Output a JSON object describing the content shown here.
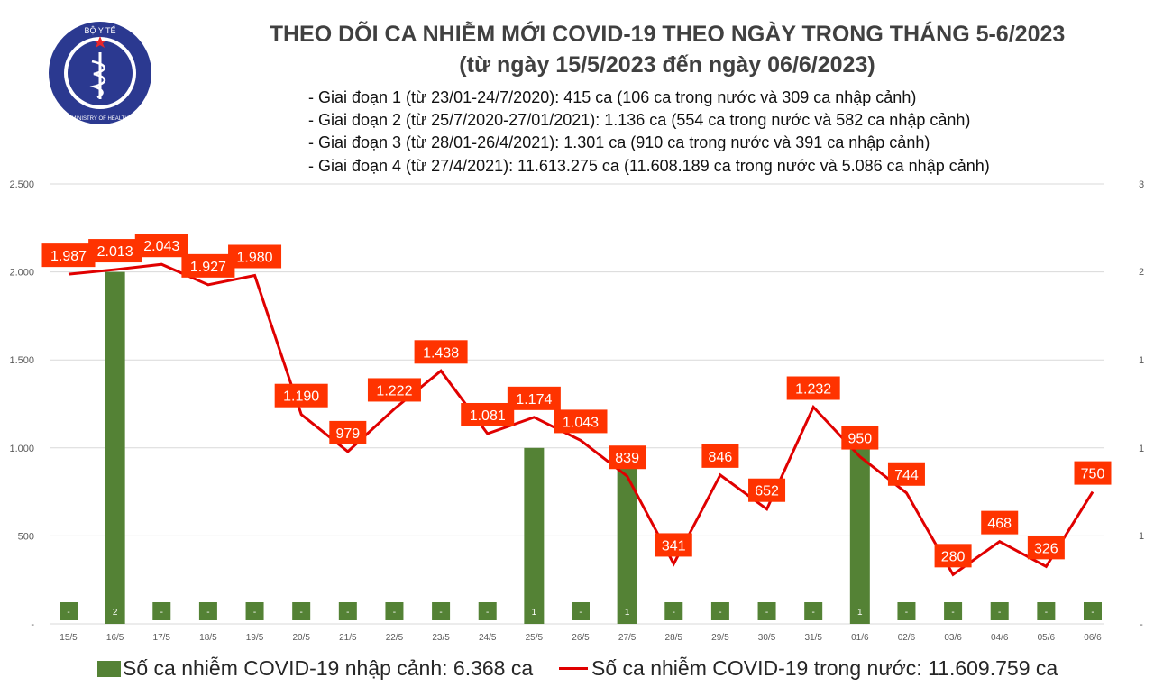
{
  "logo": {
    "text_top": "BỘ Y TẾ",
    "text_bottom": "MINISTRY OF HEALTH"
  },
  "header": {
    "title": "THEO DÕI CA NHIỄM MỚI COVID-19 THEO NGÀY TRONG THÁNG 5-6/2023",
    "subtitle": "(từ ngày 15/5/2023 đến ngày 06/6/2023)",
    "stages": [
      "- Giai đoạn 1 (từ 23/01-24/7/2020): 415 ca (106 ca trong nước và 309 ca nhập cảnh)",
      "- Giai đoạn 2 (từ 25/7/2020-27/01/2021): 1.136 ca (554 ca trong nước và 582 ca nhập cảnh)",
      "- Giai đoạn 3 (từ 28/01-26/4/2021): 1.301 ca (910 ca trong nước và 391 ca nhập cảnh)",
      "- Giai đoạn 4 (từ 27/4/2021): 11.613.275 ca (11.608.189 ca trong nước và 5.086 ca nhập cảnh)"
    ]
  },
  "chart_data": {
    "type": "bar+line",
    "categories": [
      "15/5",
      "16/5",
      "17/5",
      "18/5",
      "19/5",
      "20/5",
      "21/5",
      "22/5",
      "23/5",
      "24/5",
      "25/5",
      "26/5",
      "27/5",
      "28/5",
      "29/5",
      "30/5",
      "31/5",
      "01/6",
      "02/6",
      "03/6",
      "04/6",
      "05/6",
      "06/6"
    ],
    "series": [
      {
        "name": "Số ca nhiễm COVID-19 nhập cảnh: 6.368 ca",
        "type": "bar",
        "axis": "right",
        "color": "#548235",
        "values": [
          0,
          2,
          0,
          0,
          0,
          0,
          0,
          0,
          0,
          0,
          1,
          0,
          1,
          0,
          0,
          0,
          0,
          1,
          0,
          0,
          0,
          0,
          0
        ],
        "labels": [
          "-",
          "2",
          "-",
          "-",
          "-",
          "-",
          "-",
          "-",
          "-",
          "-",
          "1",
          "-",
          "1",
          "-",
          "-",
          "-",
          "-",
          "1",
          "-",
          "-",
          "-",
          "-",
          "-"
        ]
      },
      {
        "name": "Số ca nhiễm COVID-19 trong nước: 11.609.759 ca",
        "type": "line",
        "axis": "left",
        "color": "#e00000",
        "values": [
          1987,
          2013,
          2043,
          1927,
          1980,
          1190,
          979,
          1222,
          1438,
          1081,
          1174,
          1043,
          839,
          341,
          846,
          652,
          1232,
          950,
          744,
          280,
          468,
          326,
          750
        ],
        "labels": [
          "1.987",
          "2.013",
          "2.043",
          "1.927",
          "1.980",
          "1.190",
          "979",
          "1.222",
          "1.438",
          "1.081",
          "1.174",
          "1.043",
          "839",
          "341",
          "846",
          "652",
          "1.232",
          "950",
          "744",
          "280",
          "468",
          "326",
          "750"
        ]
      }
    ],
    "y_left": {
      "range": [
        0,
        2500
      ],
      "ticks": [
        "-",
        "500",
        "1.000",
        "1.500",
        "2.000",
        "2.500"
      ]
    },
    "y_right": {
      "range": [
        0,
        3
      ],
      "ticks": [
        "-",
        "1",
        "1",
        "1",
        "2",
        "2",
        "3"
      ]
    },
    "grid": true,
    "legend_position": "bottom",
    "label_box_color": "#ff3300"
  },
  "legend": {
    "bar_label": "Số ca nhiễm COVID-19 nhập cảnh: 6.368 ca",
    "line_label": "Số ca nhiễm COVID-19 trong nước: 11.609.759 ca"
  }
}
